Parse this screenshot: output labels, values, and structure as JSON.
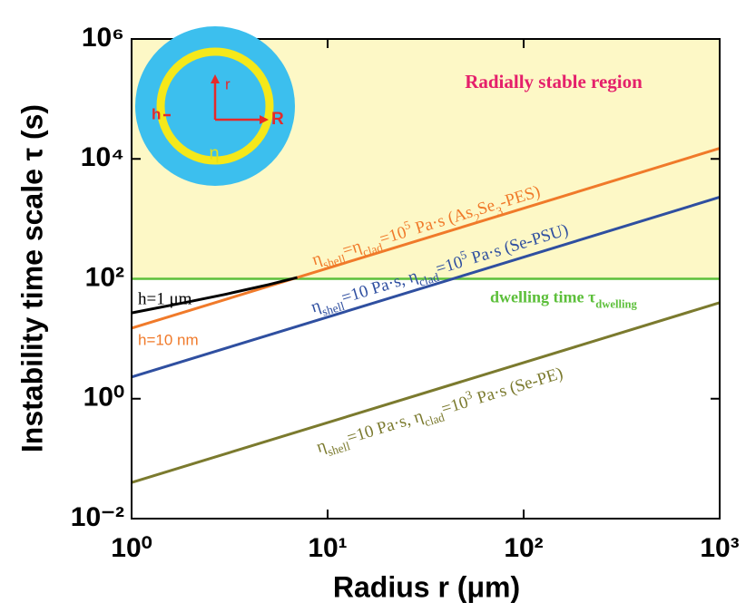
{
  "chart_data": {
    "type": "line",
    "xlabel": "Radius r (μm)",
    "ylabel": "Instability time scale τ (s)",
    "log_x": true,
    "log_y": true,
    "xlim": [
      1,
      1000
    ],
    "ylim": [
      0.01,
      1000000
    ],
    "xticks": [
      {
        "value": 1,
        "label": "10⁰"
      },
      {
        "value": 10,
        "label": "10¹"
      },
      {
        "value": 100,
        "label": "10²"
      },
      {
        "value": 1000,
        "label": "10³"
      }
    ],
    "yticks": [
      {
        "value": 0.01,
        "label": "10⁻²"
      },
      {
        "value": 1,
        "label": "10⁰"
      },
      {
        "value": 100,
        "label": "10²"
      },
      {
        "value": 10000,
        "label": "10⁴"
      },
      {
        "value": 1000000,
        "label": "10⁶"
      }
    ],
    "region": {
      "label": "Radially stable region",
      "color": "#fdf8c6",
      "label_color": "#e5206b"
    },
    "threshold": {
      "value": 100,
      "color": "#5cbf3a",
      "label": [
        "dwelling  time τ",
        {
          "sub": "dwelling"
        }
      ]
    },
    "series": [
      {
        "name": [
          "η",
          {
            "sub": "shell"
          },
          "=η",
          {
            "sub": "clad"
          },
          "=10",
          {
            "sup": "5"
          },
          " Pa·s (As",
          {
            "sub": "2"
          },
          "Se",
          {
            "sub": "3"
          },
          "-PES)"
        ],
        "tag": "h=10 nm",
        "color": "#f07a2a",
        "x": [
          1,
          1000
        ],
        "values": [
          15,
          15000
        ]
      },
      {
        "name": [
          "h=1 μm"
        ],
        "color": "#000000",
        "x": [
          1,
          2,
          3,
          5,
          7
        ],
        "values": [
          27,
          42,
          55,
          80,
          105
        ]
      },
      {
        "name": [
          "η",
          {
            "sub": "shell"
          },
          "=10 Pa·s, η",
          {
            "sub": "clad"
          },
          "=10",
          {
            "sup": "5"
          },
          " Pa·s (Se-PSU)"
        ],
        "color": "#2f4fa0",
        "x": [
          1,
          1000
        ],
        "values": [
          2.3,
          2300
        ]
      },
      {
        "name": [
          "η",
          {
            "sub": "shell"
          },
          "=10 Pa·s, η",
          {
            "sub": "clad"
          },
          "=10",
          {
            "sup": "3"
          },
          " Pa·s (Se-PE)"
        ],
        "color": "#7b7a2e",
        "x": [
          1,
          1000
        ],
        "values": [
          0.04,
          40
        ]
      }
    ],
    "inset_labels": {
      "r": "r",
      "R": "R",
      "h": "h",
      "eta": "η"
    }
  }
}
